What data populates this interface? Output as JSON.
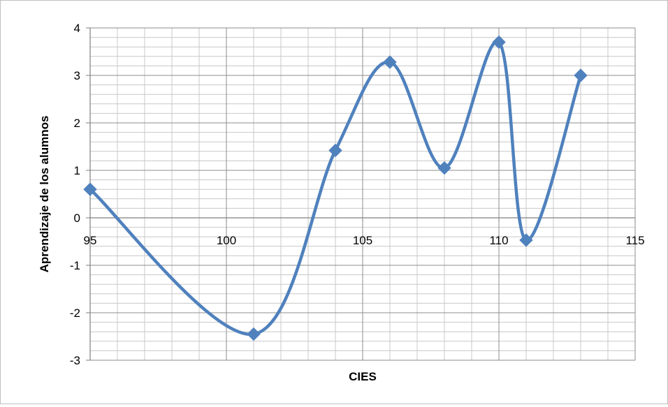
{
  "chart_data": {
    "type": "scatter",
    "line": "smooth",
    "title": "",
    "xlabel": "CIES",
    "ylabel": "Aprendizaje de los alumnos",
    "xlim": [
      95,
      115
    ],
    "ylim": [
      -3,
      4
    ],
    "xticks": [
      95,
      100,
      105,
      110,
      115
    ],
    "yticks": [
      -3,
      -2,
      -1,
      0,
      1,
      2,
      3,
      4
    ],
    "x_minor_step": 1,
    "y_minor_step": 0.2,
    "grid": true,
    "legend": "none",
    "series": [
      {
        "color": "#4f81bd",
        "marker": "diamond",
        "x": [
          95,
          101,
          104,
          106,
          108,
          110,
          111,
          113
        ],
        "y": [
          0.6,
          -2.45,
          1.42,
          3.28,
          1.05,
          3.7,
          -0.47,
          3.0
        ]
      }
    ]
  }
}
